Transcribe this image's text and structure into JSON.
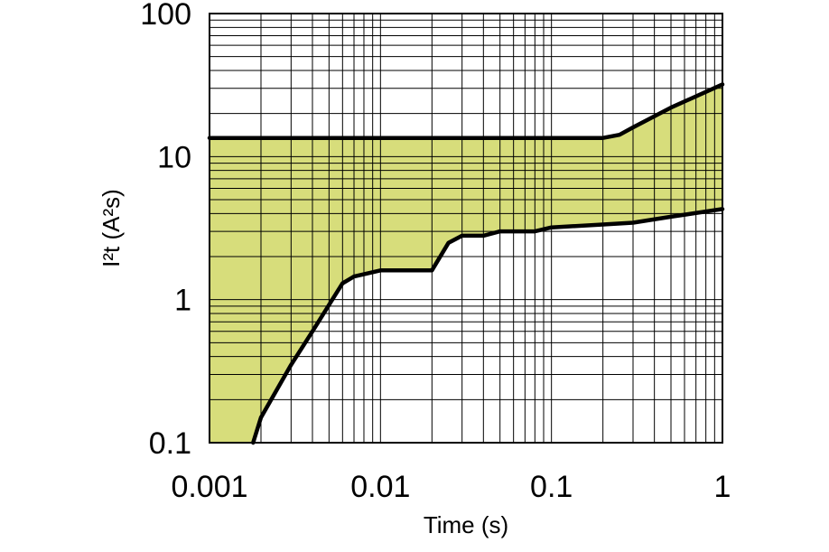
{
  "chart_data": {
    "type": "area",
    "xlabel": "Time (s)",
    "ylabel": "I²t (A²s)",
    "xscale": "log",
    "yscale": "log",
    "xlim": [
      0.001,
      1
    ],
    "ylim": [
      0.1,
      100
    ],
    "x_tick_labels": [
      "0.001",
      "0.01",
      "0.1",
      "1"
    ],
    "y_tick_labels": [
      "0.1",
      "1",
      "10",
      "100"
    ],
    "grid": true,
    "fill_color": "#d7dd7b",
    "line_color": "#000000",
    "series": [
      {
        "role": "upper",
        "x": [
          0.001,
          0.01,
          0.1,
          0.2,
          0.25,
          0.3,
          0.5,
          1
        ],
        "y": [
          13.5,
          13.5,
          13.5,
          13.5,
          14.2,
          16,
          22,
          32
        ]
      },
      {
        "role": "lower",
        "x": [
          0.0018,
          0.002,
          0.003,
          0.004,
          0.006,
          0.007,
          0.01,
          0.02,
          0.025,
          0.03,
          0.04,
          0.05,
          0.08,
          0.1,
          0.2,
          0.3,
          0.5,
          1
        ],
        "y": [
          0.1,
          0.15,
          0.35,
          0.6,
          1.3,
          1.45,
          1.6,
          1.6,
          2.5,
          2.8,
          2.8,
          3.0,
          3.0,
          3.2,
          3.35,
          3.45,
          3.8,
          4.3
        ]
      }
    ]
  }
}
